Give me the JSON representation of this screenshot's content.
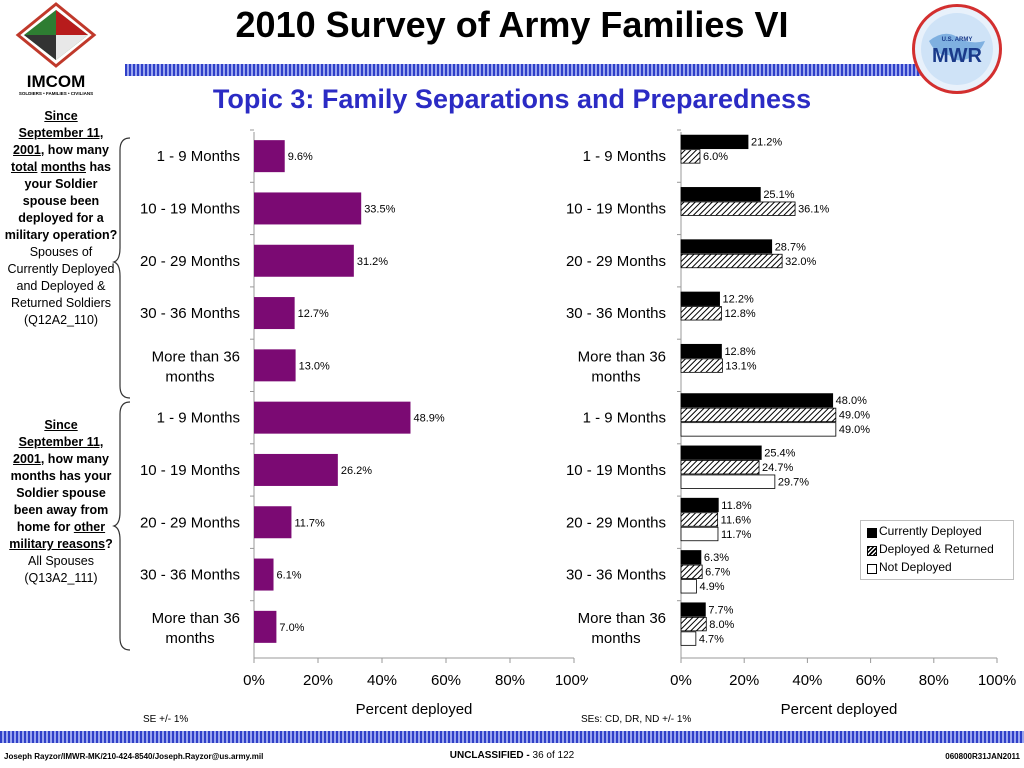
{
  "header": {
    "title": "2010 Survey of Army Families VI",
    "subtitle": "Topic 3: Family Separations and Preparedness",
    "logo_left_text": "IMCOM",
    "logo_left_tagline": "SOLDIERS • FAMILIES • CIVILIANS",
    "logo_right_top": "U.S. ARMY",
    "logo_right_main": "MWR"
  },
  "questions": {
    "q1": {
      "since": "Since",
      "date": "September 11, 2001",
      "text_a": ", how many ",
      "total": "total",
      "months": "months",
      "text_b": " has your Soldier spouse been deployed for a military operation?",
      "population": "Spouses of Currently Deployed and Deployed & Returned Soldiers",
      "code": "(Q12A2_110)"
    },
    "q2": {
      "since": "Since",
      "date": "September 11, 2001",
      "text_a": ", how many months has your Soldier spouse been away from home for ",
      "other": "other military reasons",
      "text_b": "?",
      "population": "All Spouses",
      "code": "(Q13A2_111)"
    }
  },
  "notes": {
    "left": "SE +/- 1%",
    "right": "SEs: CD, DR, ND +/- 1%"
  },
  "footer": {
    "left": "Joseph Rayzor/IMWR-MK/210-424-8540/Joseph.Rayzor@us.army.mil",
    "center_bold": "UNCLASSIFIED - ",
    "center_page": "36 of 122",
    "right": "060800R31JAN2011"
  },
  "colors": {
    "purple": "#7b0a73",
    "title_blue": "#2b2bc4",
    "stripe": "#2f3fc8"
  },
  "chart_data": [
    {
      "type": "bar",
      "orientation": "horizontal",
      "categories": [
        "1 - 9 Months",
        "10 - 19 Months",
        "20 - 29 Months",
        "30 - 36 Months",
        "More than 36 months",
        "1 - 9 Months",
        "10 - 19 Months",
        "20 - 29 Months",
        "30 - 36 Months",
        "More than 36 months"
      ],
      "values": [
        9.6,
        33.5,
        31.2,
        12.7,
        13.0,
        48.9,
        26.2,
        11.7,
        6.1,
        7.0
      ],
      "value_labels": [
        "9.6%",
        "33.5%",
        "31.2%",
        "12.7%",
        "13.0%",
        "48.9%",
        "26.2%",
        "11.7%",
        "6.1%",
        "7.0%"
      ],
      "xlabel": "Percent deployed",
      "xlim": [
        0,
        100
      ],
      "xticks": [
        "0%",
        "20%",
        "40%",
        "60%",
        "80%",
        "100%"
      ],
      "color": "#7b0a73"
    },
    {
      "type": "bar",
      "orientation": "horizontal",
      "categories": [
        "1 - 9 Months",
        "10 - 19 Months",
        "20 - 29 Months",
        "30 - 36 Months",
        "More than 36 months",
        "1 - 9 Months",
        "10 - 19 Months",
        "20 - 29 Months",
        "30 - 36 Months",
        "More than 36 months"
      ],
      "series": [
        {
          "name": "Currently Deployed",
          "values": [
            21.2,
            25.1,
            28.7,
            12.2,
            12.8,
            48.0,
            25.4,
            11.8,
            6.3,
            7.7
          ],
          "labels": [
            "21.2%",
            "25.1%",
            "28.7%",
            "12.2%",
            "12.8%",
            "48.0%",
            "25.4%",
            "11.8%",
            "6.3%",
            "7.7%"
          ]
        },
        {
          "name": "Deployed & Returned",
          "values": [
            6.0,
            36.1,
            32.0,
            12.8,
            13.1,
            49.0,
            24.7,
            11.6,
            6.7,
            8.0
          ],
          "labels": [
            "6.0%",
            "36.1%",
            "32.0%",
            "12.8%",
            "13.1%",
            "49.0%",
            "24.7%",
            "11.6%",
            "6.7%",
            "8.0%"
          ]
        },
        {
          "name": "Not Deployed",
          "values": [
            null,
            null,
            null,
            null,
            null,
            49.0,
            29.7,
            11.7,
            4.9,
            4.7
          ],
          "labels": [
            "",
            "",
            "",
            "",
            "",
            "49.0%",
            "29.7%",
            "11.7%",
            "4.9%",
            "4.7%"
          ]
        }
      ],
      "xlabel": "Percent deployed",
      "xlim": [
        0,
        100
      ],
      "xticks": [
        "0%",
        "20%",
        "40%",
        "60%",
        "80%",
        "100%"
      ],
      "legend_position": "right"
    }
  ]
}
